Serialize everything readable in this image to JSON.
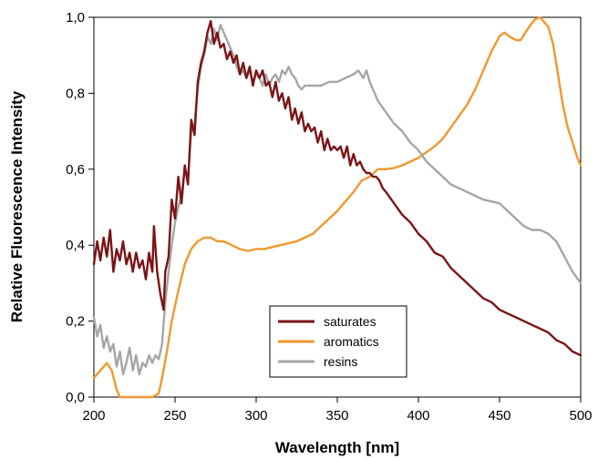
{
  "chart_data": {
    "type": "line",
    "xlabel": "Wavelength [nm]",
    "ylabel": "Relative Fluorescence Intensity",
    "xlim": [
      200,
      500
    ],
    "ylim": [
      0,
      1.0
    ],
    "x_ticks": [
      200,
      250,
      300,
      350,
      400,
      450,
      500
    ],
    "x_tick_labels": [
      "200",
      "250",
      "300",
      "350",
      "400",
      "450",
      "500"
    ],
    "y_ticks": [
      0,
      0.2,
      0.4,
      0.6,
      0.8,
      1.0
    ],
    "y_tick_labels": [
      "0,0",
      "0,2",
      "0,4",
      "0,6",
      "0,8",
      "1,0"
    ],
    "grid": false,
    "legend_position": "bottom-center",
    "series": [
      {
        "name": "saturates",
        "color": "#7b1416",
        "points": [
          [
            200,
            0.35
          ],
          [
            202,
            0.41
          ],
          [
            204,
            0.36
          ],
          [
            206,
            0.42
          ],
          [
            208,
            0.37
          ],
          [
            210,
            0.44
          ],
          [
            212,
            0.33
          ],
          [
            214,
            0.39
          ],
          [
            216,
            0.36
          ],
          [
            218,
            0.41
          ],
          [
            220,
            0.35
          ],
          [
            222,
            0.38
          ],
          [
            224,
            0.33
          ],
          [
            226,
            0.38
          ],
          [
            228,
            0.34
          ],
          [
            230,
            0.36
          ],
          [
            232,
            0.31
          ],
          [
            234,
            0.38
          ],
          [
            236,
            0.33
          ],
          [
            237,
            0.45
          ],
          [
            239,
            0.33
          ],
          [
            241,
            0.27
          ],
          [
            243,
            0.23
          ],
          [
            244,
            0.33
          ],
          [
            246,
            0.37
          ],
          [
            248,
            0.52
          ],
          [
            250,
            0.47
          ],
          [
            252,
            0.58
          ],
          [
            254,
            0.51
          ],
          [
            256,
            0.61
          ],
          [
            258,
            0.56
          ],
          [
            260,
            0.73
          ],
          [
            262,
            0.69
          ],
          [
            264,
            0.83
          ],
          [
            266,
            0.88
          ],
          [
            268,
            0.91
          ],
          [
            270,
            0.96
          ],
          [
            272,
            0.99
          ],
          [
            274,
            0.93
          ],
          [
            276,
            0.96
          ],
          [
            278,
            0.92
          ],
          [
            280,
            0.93
          ],
          [
            282,
            0.89
          ],
          [
            284,
            0.91
          ],
          [
            286,
            0.88
          ],
          [
            288,
            0.9
          ],
          [
            290,
            0.85
          ],
          [
            292,
            0.88
          ],
          [
            294,
            0.84
          ],
          [
            296,
            0.87
          ],
          [
            298,
            0.82
          ],
          [
            300,
            0.86
          ],
          [
            302,
            0.84
          ],
          [
            304,
            0.86
          ],
          [
            306,
            0.82
          ],
          [
            308,
            0.83
          ],
          [
            310,
            0.79
          ],
          [
            312,
            0.83
          ],
          [
            314,
            0.78
          ],
          [
            316,
            0.8
          ],
          [
            318,
            0.76
          ],
          [
            320,
            0.79
          ],
          [
            322,
            0.73
          ],
          [
            324,
            0.76
          ],
          [
            326,
            0.72
          ],
          [
            328,
            0.75
          ],
          [
            330,
            0.7
          ],
          [
            332,
            0.72
          ],
          [
            334,
            0.7
          ],
          [
            336,
            0.71
          ],
          [
            338,
            0.67
          ],
          [
            340,
            0.7
          ],
          [
            342,
            0.65
          ],
          [
            344,
            0.68
          ],
          [
            346,
            0.65
          ],
          [
            348,
            0.66
          ],
          [
            350,
            0.65
          ],
          [
            352,
            0.66
          ],
          [
            354,
            0.63
          ],
          [
            356,
            0.66
          ],
          [
            358,
            0.61
          ],
          [
            360,
            0.64
          ],
          [
            362,
            0.61
          ],
          [
            364,
            0.62
          ],
          [
            366,
            0.6
          ],
          [
            368,
            0.59
          ],
          [
            370,
            0.59
          ],
          [
            372,
            0.58
          ],
          [
            374,
            0.58
          ],
          [
            376,
            0.57
          ],
          [
            378,
            0.55
          ],
          [
            380,
            0.54
          ],
          [
            385,
            0.51
          ],
          [
            390,
            0.48
          ],
          [
            395,
            0.46
          ],
          [
            400,
            0.43
          ],
          [
            405,
            0.41
          ],
          [
            410,
            0.38
          ],
          [
            415,
            0.37
          ],
          [
            420,
            0.34
          ],
          [
            425,
            0.32
          ],
          [
            430,
            0.3
          ],
          [
            435,
            0.28
          ],
          [
            440,
            0.26
          ],
          [
            445,
            0.25
          ],
          [
            450,
            0.23
          ],
          [
            455,
            0.22
          ],
          [
            460,
            0.21
          ],
          [
            465,
            0.2
          ],
          [
            470,
            0.19
          ],
          [
            475,
            0.18
          ],
          [
            480,
            0.17
          ],
          [
            485,
            0.15
          ],
          [
            490,
            0.14
          ],
          [
            495,
            0.12
          ],
          [
            500,
            0.11
          ]
        ]
      },
      {
        "name": "aromatics",
        "color": "#f0982e",
        "points": [
          [
            200,
            0.05
          ],
          [
            204,
            0.07
          ],
          [
            208,
            0.09
          ],
          [
            211,
            0.07
          ],
          [
            214,
            0.02
          ],
          [
            216,
            0.0
          ],
          [
            220,
            0.0
          ],
          [
            230,
            0.0
          ],
          [
            236,
            0.0
          ],
          [
            240,
            0.01
          ],
          [
            242,
            0.05
          ],
          [
            245,
            0.12
          ],
          [
            248,
            0.2
          ],
          [
            252,
            0.28
          ],
          [
            256,
            0.35
          ],
          [
            260,
            0.39
          ],
          [
            264,
            0.41
          ],
          [
            268,
            0.42
          ],
          [
            272,
            0.42
          ],
          [
            276,
            0.41
          ],
          [
            280,
            0.41
          ],
          [
            285,
            0.4
          ],
          [
            290,
            0.39
          ],
          [
            295,
            0.385
          ],
          [
            300,
            0.39
          ],
          [
            305,
            0.39
          ],
          [
            310,
            0.395
          ],
          [
            315,
            0.4
          ],
          [
            320,
            0.405
          ],
          [
            325,
            0.41
          ],
          [
            330,
            0.42
          ],
          [
            335,
            0.43
          ],
          [
            340,
            0.45
          ],
          [
            345,
            0.47
          ],
          [
            350,
            0.49
          ],
          [
            355,
            0.515
          ],
          [
            360,
            0.54
          ],
          [
            365,
            0.57
          ],
          [
            370,
            0.58
          ],
          [
            375,
            0.6
          ],
          [
            380,
            0.6
          ],
          [
            385,
            0.603
          ],
          [
            390,
            0.61
          ],
          [
            395,
            0.62
          ],
          [
            400,
            0.63
          ],
          [
            405,
            0.645
          ],
          [
            410,
            0.66
          ],
          [
            415,
            0.68
          ],
          [
            420,
            0.71
          ],
          [
            425,
            0.74
          ],
          [
            430,
            0.77
          ],
          [
            435,
            0.81
          ],
          [
            440,
            0.86
          ],
          [
            445,
            0.91
          ],
          [
            450,
            0.95
          ],
          [
            453,
            0.96
          ],
          [
            456,
            0.95
          ],
          [
            460,
            0.94
          ],
          [
            463,
            0.94
          ],
          [
            466,
            0.96
          ],
          [
            469,
            0.98
          ],
          [
            472,
            0.995
          ],
          [
            475,
            1.0
          ],
          [
            477,
            0.99
          ],
          [
            480,
            0.975
          ],
          [
            483,
            0.93
          ],
          [
            486,
            0.85
          ],
          [
            489,
            0.77
          ],
          [
            492,
            0.71
          ],
          [
            495,
            0.67
          ],
          [
            498,
            0.63
          ],
          [
            500,
            0.61
          ]
        ]
      },
      {
        "name": "resins",
        "color": "#a6a6a6",
        "points": [
          [
            200,
            0.21
          ],
          [
            202,
            0.16
          ],
          [
            204,
            0.19
          ],
          [
            206,
            0.13
          ],
          [
            208,
            0.16
          ],
          [
            210,
            0.12
          ],
          [
            212,
            0.14
          ],
          [
            214,
            0.08
          ],
          [
            216,
            0.12
          ],
          [
            218,
            0.06
          ],
          [
            220,
            0.09
          ],
          [
            222,
            0.13
          ],
          [
            224,
            0.07
          ],
          [
            226,
            0.11
          ],
          [
            228,
            0.06
          ],
          [
            230,
            0.09
          ],
          [
            232,
            0.08
          ],
          [
            234,
            0.11
          ],
          [
            236,
            0.09
          ],
          [
            238,
            0.11
          ],
          [
            240,
            0.1
          ],
          [
            242,
            0.14
          ],
          [
            244,
            0.25
          ],
          [
            246,
            0.33
          ],
          [
            248,
            0.4
          ],
          [
            250,
            0.46
          ],
          [
            252,
            0.5
          ],
          [
            254,
            0.53
          ],
          [
            256,
            0.6
          ],
          [
            258,
            0.58
          ],
          [
            260,
            0.7
          ],
          [
            262,
            0.72
          ],
          [
            264,
            0.81
          ],
          [
            266,
            0.87
          ],
          [
            268,
            0.9
          ],
          [
            270,
            0.95
          ],
          [
            272,
            0.93
          ],
          [
            274,
            0.97
          ],
          [
            276,
            0.94
          ],
          [
            278,
            0.98
          ],
          [
            280,
            0.96
          ],
          [
            282,
            0.94
          ],
          [
            284,
            0.92
          ],
          [
            286,
            0.9
          ],
          [
            288,
            0.87
          ],
          [
            290,
            0.85
          ],
          [
            292,
            0.86
          ],
          [
            294,
            0.84
          ],
          [
            296,
            0.86
          ],
          [
            298,
            0.83
          ],
          [
            300,
            0.85
          ],
          [
            302,
            0.84
          ],
          [
            304,
            0.82
          ],
          [
            306,
            0.85
          ],
          [
            308,
            0.82
          ],
          [
            310,
            0.84
          ],
          [
            312,
            0.85
          ],
          [
            314,
            0.83
          ],
          [
            316,
            0.86
          ],
          [
            318,
            0.85
          ],
          [
            320,
            0.87
          ],
          [
            322,
            0.85
          ],
          [
            324,
            0.84
          ],
          [
            326,
            0.82
          ],
          [
            328,
            0.81
          ],
          [
            330,
            0.82
          ],
          [
            335,
            0.82
          ],
          [
            340,
            0.82
          ],
          [
            345,
            0.83
          ],
          [
            350,
            0.83
          ],
          [
            355,
            0.84
          ],
          [
            360,
            0.85
          ],
          [
            363,
            0.86
          ],
          [
            366,
            0.84
          ],
          [
            368,
            0.86
          ],
          [
            370,
            0.83
          ],
          [
            372,
            0.81
          ],
          [
            375,
            0.78
          ],
          [
            380,
            0.75
          ],
          [
            385,
            0.72
          ],
          [
            390,
            0.7
          ],
          [
            395,
            0.67
          ],
          [
            400,
            0.65
          ],
          [
            405,
            0.62
          ],
          [
            410,
            0.6
          ],
          [
            415,
            0.58
          ],
          [
            420,
            0.56
          ],
          [
            425,
            0.55
          ],
          [
            430,
            0.54
          ],
          [
            435,
            0.53
          ],
          [
            440,
            0.52
          ],
          [
            445,
            0.515
          ],
          [
            450,
            0.51
          ],
          [
            455,
            0.49
          ],
          [
            460,
            0.47
          ],
          [
            465,
            0.45
          ],
          [
            470,
            0.44
          ],
          [
            475,
            0.44
          ],
          [
            480,
            0.43
          ],
          [
            485,
            0.41
          ],
          [
            490,
            0.37
          ],
          [
            495,
            0.33
          ],
          [
            500,
            0.3
          ]
        ]
      }
    ]
  }
}
